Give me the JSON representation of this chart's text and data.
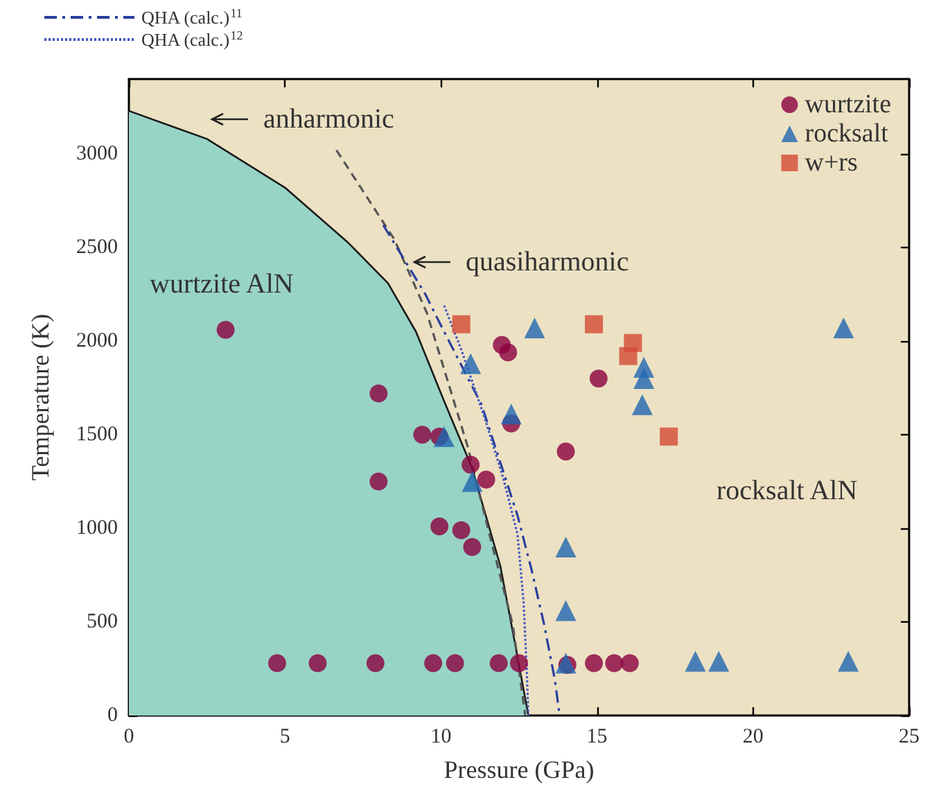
{
  "chart_data": {
    "type": "scatter",
    "xlabel": "Pressure (GPa)",
    "ylabel": "Temperature (K)",
    "xlim": [
      0,
      25
    ],
    "xticks": [
      0,
      5,
      10,
      15,
      20,
      25
    ],
    "ylim": [
      0,
      3400
    ],
    "yticks": [
      0,
      500,
      1000,
      1500,
      2000,
      2500,
      3000
    ],
    "grid": false,
    "legend": "top",
    "series": [
      {
        "type": "area",
        "color": "#98d4c6",
        "x": [
          0,
          2.5,
          5,
          7,
          8.3,
          9.2,
          10.1,
          11,
          11.9,
          12.4,
          12.8
        ],
        "values": [
          3230,
          3080,
          2820,
          2530,
          2310,
          2050,
          1680,
          1320,
          800,
          360,
          0
        ]
      },
      {
        "type": "line",
        "color": "#555555",
        "line_style": "dashed",
        "x": [
          6.65,
          8.5,
          9.55,
          10.1,
          10.85,
          11.55,
          12.3,
          12.7
        ],
        "values": [
          3020,
          2545,
          2150,
          1850,
          1440,
          970,
          485,
          0
        ]
      },
      {
        "type": "line",
        "name": "QHA (calc.)$^{11}$",
        "color": "#2a3f9e",
        "line_style": "dashdot",
        "x": [
          8.15,
          9.5,
          9.95,
          11.3,
          12.45,
          12.9,
          13.3,
          13.65,
          13.8
        ],
        "values": [
          2620,
          2250,
          2100,
          1660,
          1070,
          780,
          490,
          190,
          0
        ]
      },
      {
        "type": "line",
        "name": "QHA (calc.)$^{12}$",
        "color": "#4057c0",
        "line_style": "dotted",
        "x": [
          10.1,
          10.65,
          11.4,
          12.0,
          12.45,
          12.65,
          12.75,
          12.8
        ],
        "values": [
          2190,
          1955,
          1590,
          1265,
          970,
          600,
          235,
          0
        ]
      },
      {
        "name": "wurtzite",
        "color": "#8b0040",
        "marker": "circle",
        "x": [
          3.1,
          8.0,
          8.0,
          9.4,
          9.95,
          10.95,
          11.45,
          9.95,
          10.65,
          11.0,
          11.95,
          12.15,
          12.25,
          15.05,
          14.0,
          4.75,
          6.05,
          7.9,
          9.75,
          10.45,
          11.85,
          12.5,
          14.05,
          14.9,
          15.55,
          16.05
        ],
        "values": [
          2060,
          1720,
          1250,
          1500,
          1490,
          1340,
          1260,
          1010,
          990,
          900,
          1980,
          1940,
          1560,
          1800,
          1410,
          280,
          280,
          280,
          280,
          280,
          280,
          280,
          270,
          280,
          280,
          280
        ]
      },
      {
        "name": "rocksalt",
        "color": "#1f66b0",
        "marker": "triangle",
        "x": [
          13.0,
          10.95,
          12.25,
          10.1,
          11.0,
          14.0,
          14.0,
          14.0,
          22.9,
          16.5,
          16.5,
          16.45,
          18.15,
          18.9,
          23.05
        ],
        "values": [
          2070,
          1880,
          1610,
          1490,
          1250,
          900,
          560,
          280,
          2070,
          1860,
          1800,
          1660,
          290,
          290,
          290
        ]
      },
      {
        "name": "w+rs",
        "color": "#d34a35",
        "marker": "square",
        "x": [
          10.65,
          14.9,
          16.15,
          16.0,
          17.3
        ],
        "values": [
          2090,
          2090,
          1990,
          1920,
          1490
        ]
      }
    ],
    "annotations": [
      "anharmonic",
      "quasiharmonic",
      "wurtzite AlN",
      "rocksalt AlN"
    ]
  }
}
